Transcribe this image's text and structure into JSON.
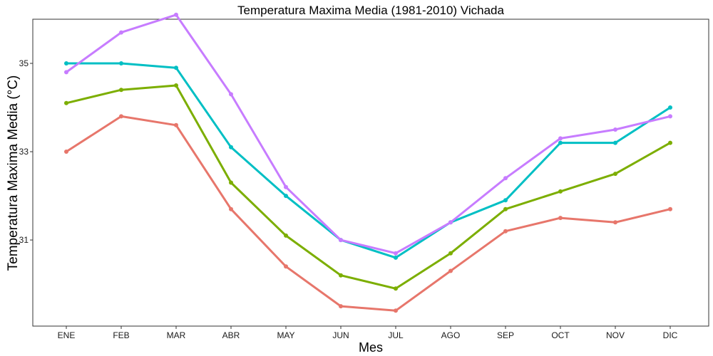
{
  "chart_data": {
    "type": "line",
    "title": "Temperatura Maxima Media (1981-2010)  Vichada",
    "xlabel": "Mes",
    "ylabel": "Temperatura Maxima Media  (°C)",
    "categories": [
      "ENE",
      "FEB",
      "MAR",
      "ABR",
      "MAY",
      "JUN",
      "JUL",
      "AGO",
      "SEP",
      "OCT",
      "NOV",
      "DIC"
    ],
    "yticks": [
      31,
      33,
      35
    ],
    "ylim": [
      29.05,
      36.0
    ],
    "grid": false,
    "legend": "none",
    "series": [
      {
        "color": "#E7766B",
        "values": [
          33.0,
          33.8,
          33.6,
          31.7,
          30.4,
          29.5,
          29.4,
          30.3,
          31.2,
          31.5,
          31.4,
          31.7
        ]
      },
      {
        "color": "#7CAE00",
        "values": [
          34.1,
          34.4,
          34.5,
          32.3,
          31.1,
          30.2,
          29.9,
          30.7,
          31.7,
          32.1,
          32.5,
          33.2
        ]
      },
      {
        "color": "#00BFC4",
        "values": [
          35.0,
          35.0,
          34.9,
          33.1,
          32.0,
          31.0,
          30.6,
          31.4,
          31.9,
          33.2,
          33.2,
          34.0
        ]
      },
      {
        "color": "#C77CFF",
        "values": [
          34.8,
          35.7,
          36.1,
          34.3,
          32.2,
          31.0,
          30.7,
          31.4,
          32.4,
          33.3,
          33.5,
          33.8
        ]
      }
    ]
  }
}
